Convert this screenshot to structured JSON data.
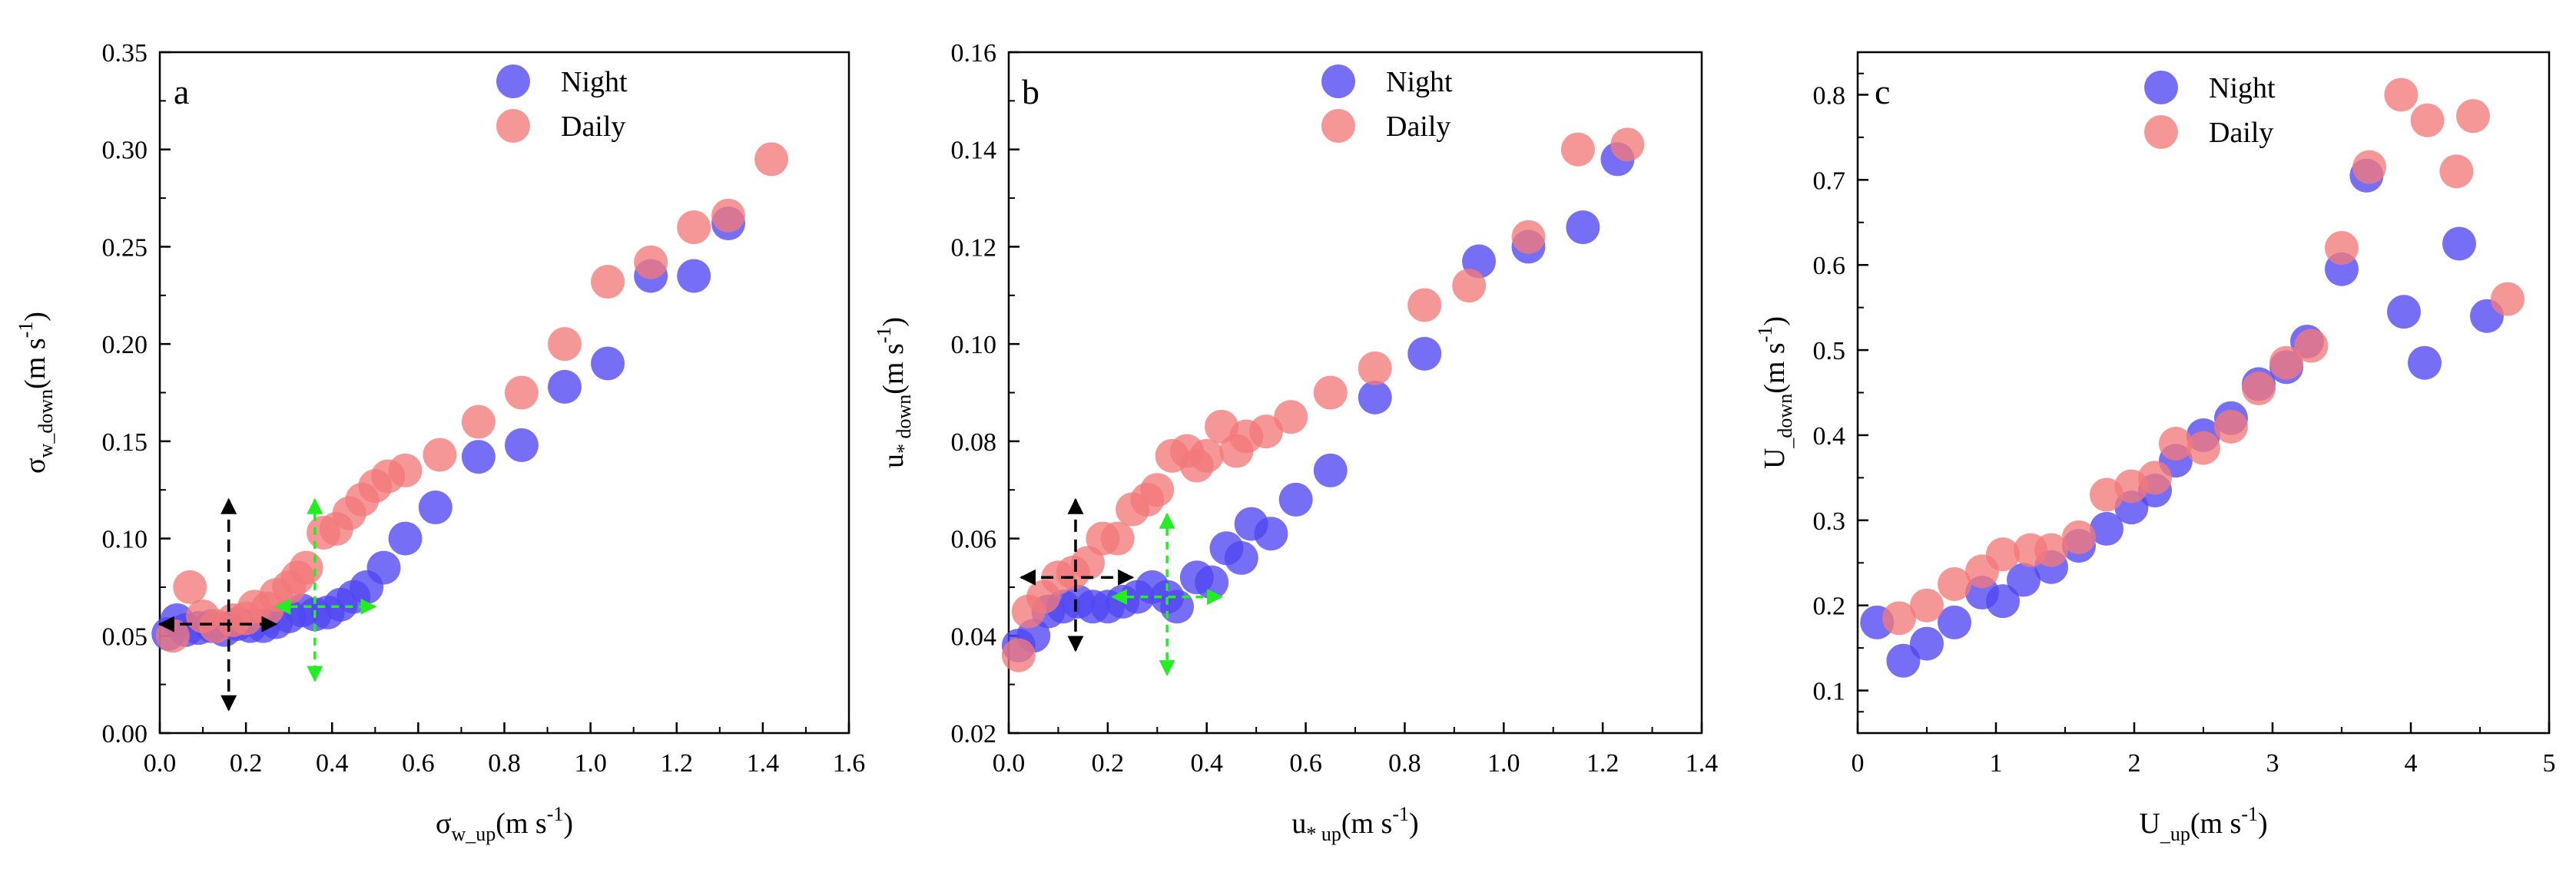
{
  "colors": {
    "night": "#4f46f2",
    "daily": "#f2787a",
    "axis": "#000000",
    "marker_black": "#000000",
    "marker_green": "#22ee22"
  },
  "chart_data": [
    {
      "type": "scatter",
      "panel": "a",
      "xlabel": {
        "main": "σ",
        "sub": "w_up",
        "unit": "(m s",
        "sup": "-1",
        "close": ")"
      },
      "ylabel": {
        "main": "σ",
        "sub": "w_down",
        "unit": "(m s",
        "sup": "-1",
        "close": ")"
      },
      "xlim": [
        0,
        1.6
      ],
      "ylim": [
        0,
        0.35
      ],
      "xticks": [
        0.0,
        0.2,
        0.4,
        0.6,
        0.8,
        1.0,
        1.2,
        1.4,
        1.6
      ],
      "xtick_labels": [
        "0.0",
        "0.2",
        "0.4",
        "0.6",
        "0.8",
        "1.0",
        "1.2",
        "1.4",
        "1.6"
      ],
      "yticks": [
        0.0,
        0.05,
        0.1,
        0.15,
        0.2,
        0.25,
        0.3,
        0.35
      ],
      "ytick_labels": [
        "0.00",
        "0.05",
        "0.10",
        "0.15",
        "0.20",
        "0.25",
        "0.30",
        "0.35"
      ],
      "legend": [
        "Night",
        "Daily"
      ],
      "series": [
        {
          "name": "Night",
          "points": [
            [
              0.02,
              0.051
            ],
            [
              0.04,
              0.058
            ],
            [
              0.06,
              0.053
            ],
            [
              0.09,
              0.054
            ],
            [
              0.12,
              0.055
            ],
            [
              0.15,
              0.053
            ],
            [
              0.18,
              0.056
            ],
            [
              0.21,
              0.055
            ],
            [
              0.24,
              0.055
            ],
            [
              0.27,
              0.057
            ],
            [
              0.3,
              0.06
            ],
            [
              0.33,
              0.063
            ],
            [
              0.36,
              0.061
            ],
            [
              0.39,
              0.062
            ],
            [
              0.42,
              0.066
            ],
            [
              0.45,
              0.07
            ],
            [
              0.48,
              0.075
            ],
            [
              0.52,
              0.085
            ],
            [
              0.57,
              0.1
            ],
            [
              0.64,
              0.116
            ],
            [
              0.74,
              0.142
            ],
            [
              0.84,
              0.148
            ],
            [
              0.94,
              0.178
            ],
            [
              1.04,
              0.19
            ],
            [
              1.14,
              0.235
            ],
            [
              1.24,
              0.235
            ],
            [
              1.32,
              0.262
            ]
          ]
        },
        {
          "name": "Daily",
          "points": [
            [
              0.03,
              0.05
            ],
            [
              0.07,
              0.075
            ],
            [
              0.1,
              0.06
            ],
            [
              0.13,
              0.055
            ],
            [
              0.17,
              0.058
            ],
            [
              0.2,
              0.059
            ],
            [
              0.22,
              0.065
            ],
            [
              0.25,
              0.064
            ],
            [
              0.27,
              0.071
            ],
            [
              0.3,
              0.075
            ],
            [
              0.32,
              0.08
            ],
            [
              0.34,
              0.085
            ],
            [
              0.38,
              0.103
            ],
            [
              0.41,
              0.105
            ],
            [
              0.44,
              0.113
            ],
            [
              0.47,
              0.12
            ],
            [
              0.5,
              0.127
            ],
            [
              0.53,
              0.132
            ],
            [
              0.57,
              0.135
            ],
            [
              0.65,
              0.143
            ],
            [
              0.74,
              0.16
            ],
            [
              0.84,
              0.175
            ],
            [
              0.94,
              0.2
            ],
            [
              1.04,
              0.232
            ],
            [
              1.14,
              0.242
            ],
            [
              1.24,
              0.26
            ],
            [
              1.32,
              0.266
            ],
            [
              1.42,
              0.295
            ]
          ]
        }
      ],
      "markers": [
        {
          "color": "black",
          "cross": [
            0.16,
            0.056
          ],
          "x_extent": [
            0.0,
            0.27
          ],
          "y_extent": [
            0.012,
            0.12
          ]
        },
        {
          "color": "green",
          "cross": [
            0.36,
            0.065
          ],
          "x_extent": [
            0.27,
            0.5
          ],
          "y_extent": [
            0.027,
            0.12
          ]
        }
      ]
    },
    {
      "type": "scatter",
      "panel": "b",
      "xlabel": {
        "main": "u",
        "sub": "* up",
        "unit": "(m s",
        "sup": "-1",
        "close": ")"
      },
      "ylabel": {
        "main": "u",
        "sub": "* down",
        "unit": "(m s",
        "sup": "-1",
        "close": ")"
      },
      "xlim": [
        0,
        1.4
      ],
      "ylim": [
        0.02,
        0.16
      ],
      "xticks": [
        0.0,
        0.2,
        0.4,
        0.6,
        0.8,
        1.0,
        1.2,
        1.4
      ],
      "xtick_labels": [
        "0.0",
        "0.2",
        "0.4",
        "0.6",
        "0.8",
        "1.0",
        "1.2",
        "1.4"
      ],
      "yticks": [
        0.02,
        0.04,
        0.06,
        0.08,
        0.1,
        0.12,
        0.14,
        0.16
      ],
      "ytick_labels": [
        "0.02",
        "0.04",
        "0.06",
        "0.08",
        "0.10",
        "0.12",
        "0.14",
        "0.16"
      ],
      "legend": [
        "Night",
        "Daily"
      ],
      "series": [
        {
          "name": "Night",
          "points": [
            [
              0.02,
              0.038
            ],
            [
              0.05,
              0.04
            ],
            [
              0.08,
              0.045
            ],
            [
              0.11,
              0.046
            ],
            [
              0.14,
              0.047
            ],
            [
              0.17,
              0.046
            ],
            [
              0.2,
              0.046
            ],
            [
              0.23,
              0.047
            ],
            [
              0.26,
              0.048
            ],
            [
              0.29,
              0.05
            ],
            [
              0.32,
              0.048
            ],
            [
              0.34,
              0.046
            ],
            [
              0.38,
              0.052
            ],
            [
              0.41,
              0.051
            ],
            [
              0.44,
              0.058
            ],
            [
              0.47,
              0.056
            ],
            [
              0.49,
              0.063
            ],
            [
              0.53,
              0.061
            ],
            [
              0.58,
              0.068
            ],
            [
              0.65,
              0.074
            ],
            [
              0.74,
              0.089
            ],
            [
              0.84,
              0.098
            ],
            [
              0.95,
              0.117
            ],
            [
              1.05,
              0.12
            ],
            [
              1.16,
              0.124
            ],
            [
              1.23,
              0.138
            ]
          ]
        },
        {
          "name": "Daily",
          "points": [
            [
              0.02,
              0.036
            ],
            [
              0.04,
              0.045
            ],
            [
              0.07,
              0.048
            ],
            [
              0.1,
              0.052
            ],
            [
              0.13,
              0.053
            ],
            [
              0.16,
              0.055
            ],
            [
              0.19,
              0.06
            ],
            [
              0.22,
              0.06
            ],
            [
              0.25,
              0.066
            ],
            [
              0.28,
              0.068
            ],
            [
              0.3,
              0.07
            ],
            [
              0.33,
              0.077
            ],
            [
              0.36,
              0.078
            ],
            [
              0.38,
              0.075
            ],
            [
              0.4,
              0.077
            ],
            [
              0.43,
              0.083
            ],
            [
              0.46,
              0.078
            ],
            [
              0.48,
              0.081
            ],
            [
              0.52,
              0.082
            ],
            [
              0.57,
              0.085
            ],
            [
              0.65,
              0.09
            ],
            [
              0.74,
              0.095
            ],
            [
              0.84,
              0.108
            ],
            [
              0.93,
              0.112
            ],
            [
              1.05,
              0.122
            ],
            [
              1.15,
              0.14
            ],
            [
              1.25,
              0.141
            ]
          ]
        }
      ],
      "markers": [
        {
          "color": "black",
          "cross": [
            0.135,
            0.052
          ],
          "x_extent": [
            0.025,
            0.25
          ],
          "y_extent": [
            0.037,
            0.068
          ]
        },
        {
          "color": "green",
          "cross": [
            0.32,
            0.048
          ],
          "x_extent": [
            0.21,
            0.43
          ],
          "y_extent": [
            0.032,
            0.065
          ]
        }
      ]
    },
    {
      "type": "scatter",
      "panel": "c",
      "xlabel": {
        "main": "U",
        "sub": "_up",
        "unit": "(m s",
        "sup": "-1",
        "close": ")"
      },
      "ylabel": {
        "main": "U",
        "sub": "_down",
        "unit": "(m s",
        "sup": "-1",
        "close": ")"
      },
      "xlim": [
        0,
        5
      ],
      "ylim": [
        0.05,
        0.85
      ],
      "xticks": [
        0,
        1,
        2,
        3,
        4,
        5
      ],
      "xtick_labels": [
        "0",
        "1",
        "2",
        "3",
        "4",
        "5"
      ],
      "yticks": [
        0.1,
        0.2,
        0.3,
        0.4,
        0.5,
        0.6,
        0.7,
        0.8
      ],
      "ytick_labels": [
        "0.1",
        "0.2",
        "0.3",
        "0.4",
        "0.5",
        "0.6",
        "0.7",
        "0.8"
      ],
      "legend": [
        "Night",
        "Daily"
      ],
      "series": [
        {
          "name": "Night",
          "points": [
            [
              0.14,
              0.18
            ],
            [
              0.33,
              0.135
            ],
            [
              0.5,
              0.155
            ],
            [
              0.7,
              0.18
            ],
            [
              0.9,
              0.215
            ],
            [
              1.05,
              0.205
            ],
            [
              1.2,
              0.23
            ],
            [
              1.4,
              0.245
            ],
            [
              1.6,
              0.27
            ],
            [
              1.8,
              0.29
            ],
            [
              1.98,
              0.315
            ],
            [
              2.15,
              0.335
            ],
            [
              2.3,
              0.37
            ],
            [
              2.5,
              0.4
            ],
            [
              2.7,
              0.42
            ],
            [
              2.9,
              0.46
            ],
            [
              3.1,
              0.48
            ],
            [
              3.25,
              0.51
            ],
            [
              3.5,
              0.595
            ],
            [
              3.68,
              0.705
            ],
            [
              3.95,
              0.545
            ],
            [
              4.1,
              0.485
            ],
            [
              4.35,
              0.625
            ],
            [
              4.55,
              0.54
            ]
          ]
        },
        {
          "name": "Daily",
          "points": [
            [
              0.3,
              0.185
            ],
            [
              0.5,
              0.2
            ],
            [
              0.7,
              0.225
            ],
            [
              0.9,
              0.24
            ],
            [
              1.05,
              0.26
            ],
            [
              1.25,
              0.265
            ],
            [
              1.4,
              0.265
            ],
            [
              1.6,
              0.28
            ],
            [
              1.8,
              0.33
            ],
            [
              1.98,
              0.34
            ],
            [
              2.15,
              0.35
            ],
            [
              2.3,
              0.39
            ],
            [
              2.5,
              0.385
            ],
            [
              2.7,
              0.41
            ],
            [
              2.9,
              0.455
            ],
            [
              3.1,
              0.485
            ],
            [
              3.28,
              0.505
            ],
            [
              3.5,
              0.62
            ],
            [
              3.7,
              0.715
            ],
            [
              3.93,
              0.8
            ],
            [
              4.12,
              0.77
            ],
            [
              4.33,
              0.71
            ],
            [
              4.45,
              0.775
            ],
            [
              4.7,
              0.56
            ]
          ]
        }
      ],
      "markers": []
    }
  ]
}
